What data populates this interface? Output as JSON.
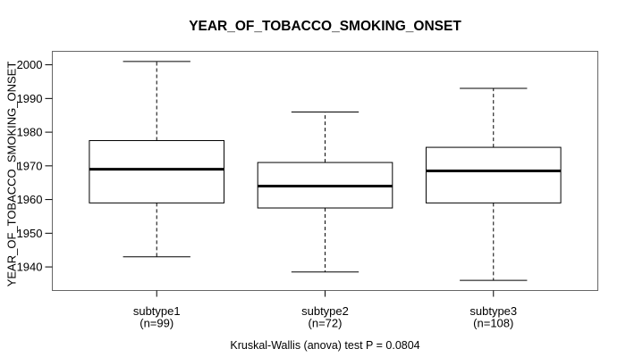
{
  "chart_data": {
    "type": "boxplot",
    "title": "YEAR_OF_TOBACCO_SMOKING_ONSET",
    "ylabel": "YEAR_OF_TOBACCO_SMOKING_ONSET",
    "xlabel": "",
    "ylim": [
      1933,
      2004
    ],
    "yticks": [
      1940,
      1950,
      1960,
      1970,
      1980,
      1990,
      2000
    ],
    "grid": false,
    "annotation": "Kruskal-Wallis (anova) test P = 0.0804",
    "groups": [
      {
        "label": "subtype1",
        "n_label": "(n=99)",
        "whisker_low": 1943,
        "q1": 1959,
        "median": 1969,
        "q3": 1977.5,
        "whisker_high": 2001
      },
      {
        "label": "subtype2",
        "n_label": "(n=72)",
        "whisker_low": 1938.5,
        "q1": 1957.5,
        "median": 1964,
        "q3": 1971,
        "whisker_high": 1986
      },
      {
        "label": "subtype3",
        "n_label": "(n=108)",
        "whisker_low": 1936,
        "q1": 1959,
        "median": 1968.5,
        "q3": 1975.5,
        "whisker_high": 1993
      }
    ],
    "colors": {
      "line": "#000000",
      "box_fill": "#ffffff",
      "border": "#666666",
      "background": "#ffffff"
    }
  }
}
